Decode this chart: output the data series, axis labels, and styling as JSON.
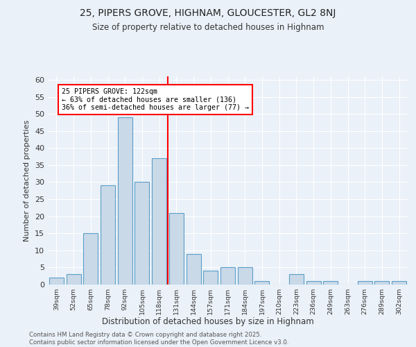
{
  "title1": "25, PIPERS GROVE, HIGHNAM, GLOUCESTER, GL2 8NJ",
  "title2": "Size of property relative to detached houses in Highnam",
  "xlabel": "Distribution of detached houses by size in Highnam",
  "ylabel": "Number of detached properties",
  "bar_labels": [
    "39sqm",
    "52sqm",
    "65sqm",
    "78sqm",
    "92sqm",
    "105sqm",
    "118sqm",
    "131sqm",
    "144sqm",
    "157sqm",
    "171sqm",
    "184sqm",
    "197sqm",
    "210sqm",
    "223sqm",
    "236sqm",
    "249sqm",
    "263sqm",
    "276sqm",
    "289sqm",
    "302sqm"
  ],
  "bar_values": [
    2,
    3,
    15,
    29,
    49,
    30,
    37,
    21,
    9,
    4,
    5,
    5,
    1,
    0,
    3,
    1,
    1,
    0,
    1,
    1,
    1
  ],
  "bar_color": "#c9d9e8",
  "bar_edge_color": "#5a9ec8",
  "bg_color": "#eaf1f8",
  "annotation_text": "25 PIPERS GROVE: 122sqm\n← 63% of detached houses are smaller (136)\n36% of semi-detached houses are larger (77) →",
  "footer": "Contains HM Land Registry data © Crown copyright and database right 2025.\nContains public sector information licensed under the Open Government Licence v3.0.",
  "ylim": [
    0,
    61
  ],
  "yticks": [
    0,
    5,
    10,
    15,
    20,
    25,
    30,
    35,
    40,
    45,
    50,
    55,
    60
  ],
  "vline_pos": 6.5
}
